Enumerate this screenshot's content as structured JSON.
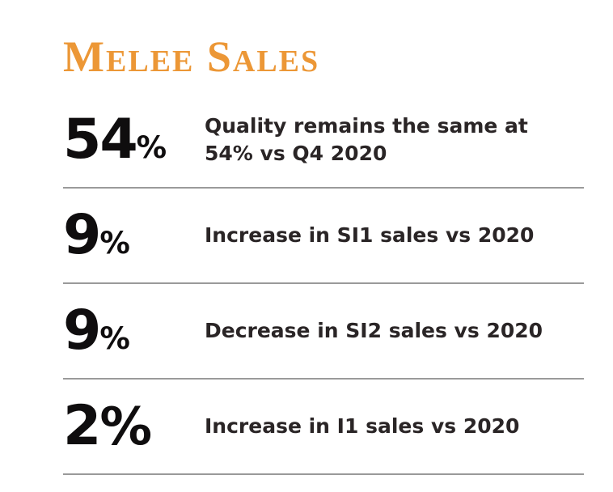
{
  "header": {
    "title": "Melee Sales"
  },
  "stats": [
    {
      "value": "54",
      "unit": "%",
      "description": "Quality remains the same at\n54% vs Q4 2020"
    },
    {
      "value": "9",
      "unit": "%",
      "description": "Increase in SI1 sales vs 2020"
    },
    {
      "value": "9",
      "unit": "%",
      "description": "Decrease in SI2 sales vs 2020"
    },
    {
      "value": "2",
      "unit": "%",
      "description": "Increase in I1 sales vs 2020"
    }
  ],
  "colors": {
    "accent": "#EC9736",
    "number": "#0f0d0e",
    "text": "#2a2526",
    "divider": "#9a9a9a"
  }
}
